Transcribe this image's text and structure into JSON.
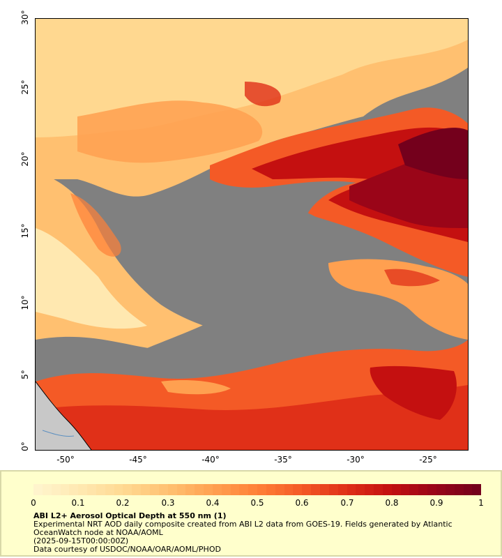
{
  "map": {
    "lat_ticks": [
      "0°",
      "5°",
      "10°",
      "15°",
      "20°",
      "25°",
      "30°"
    ],
    "lon_ticks": [
      "-50°",
      "-45°",
      "-40°",
      "-35°",
      "-30°",
      "-25°"
    ],
    "extent": {
      "lon_min": -52.1,
      "lon_max": -22.3,
      "lat_min": 0,
      "lat_max": 30
    },
    "colors": {
      "cloud_mask": "#808080",
      "land": "#c8c8c8",
      "coastline": "#5b8fc0"
    }
  },
  "legend": {
    "colorbar_ticks": [
      "0",
      "0.1",
      "0.2",
      "0.3",
      "0.4",
      "0.5",
      "0.6",
      "0.7",
      "0.8",
      "0.9",
      "1"
    ],
    "colorbar_colors": [
      "#fff4cc",
      "#ffe8b0",
      "#ffd890",
      "#ffc070",
      "#ffa050",
      "#ff8038",
      "#f45a26",
      "#e03018",
      "#c41010",
      "#9a0518",
      "#74001c"
    ],
    "title": "ABI L2+ Aerosol Optical Depth at 550 nm (1)",
    "line1": "Experimental NRT AOD daily composite created from ABI L2 data from GOES-19. Fields generated by Atlantic OceanWatch node at NOAA/AOML",
    "line2": "(2025-09-15T00:00:00Z)",
    "line3": "Data courtesy of USDOC/NOAA/OAR/AOML/PHOD"
  }
}
